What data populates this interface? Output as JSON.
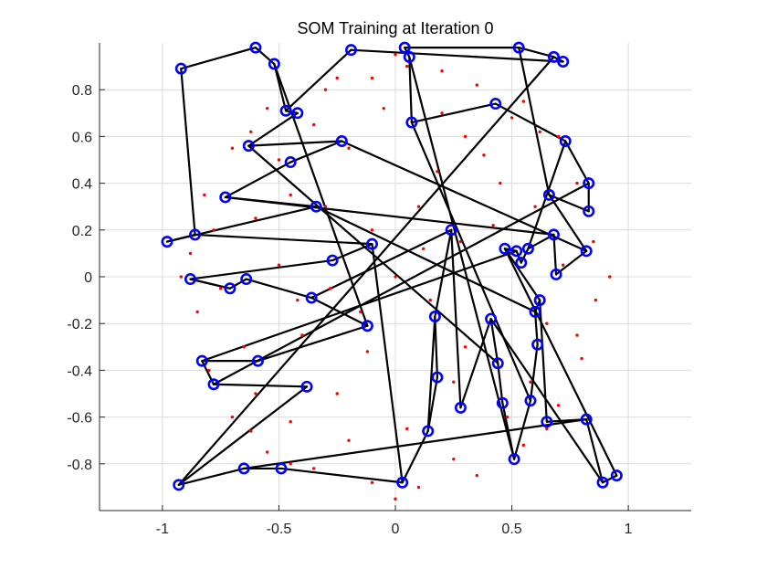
{
  "chart_data": {
    "type": "scatter",
    "title": "SOM Training at Iteration 0",
    "xlabel": "",
    "ylabel": "",
    "xlim": [
      -1.27,
      1.27
    ],
    "ylim": [
      -1.0,
      1.0
    ],
    "grid": true,
    "xticks": [
      -1,
      -0.5,
      0,
      0.5,
      1
    ],
    "yticks": [
      -0.8,
      -0.6,
      -0.4,
      -0.2,
      0,
      0.2,
      0.4,
      0.6,
      0.8
    ],
    "xtick_labels": [
      "-1",
      "-0.5",
      "0",
      "0.5",
      "1"
    ],
    "ytick_labels": [
      "-0.8",
      "-0.6",
      "-0.4",
      "-0.2",
      "0",
      "0.2",
      "0.4",
      "0.6",
      "0.8"
    ],
    "colors": {
      "data_points": "#ff0000",
      "neurons": "#0000ff",
      "connections": "#000000",
      "grid": "#dcdcdc",
      "axis": "#262626"
    },
    "series": [
      {
        "role": "data-points",
        "marker": "dot",
        "color": "#ff0000",
        "points": [
          [
            0.05,
            0.9
          ],
          [
            -0.1,
            0.85
          ],
          [
            0.2,
            0.88
          ],
          [
            0.35,
            0.82
          ],
          [
            -0.3,
            0.8
          ],
          [
            0.55,
            0.75
          ],
          [
            -0.55,
            0.72
          ],
          [
            0.7,
            0.6
          ],
          [
            -0.7,
            0.55
          ],
          [
            0.78,
            0.4
          ],
          [
            -0.82,
            0.35
          ],
          [
            0.85,
            0.15
          ],
          [
            -0.88,
            0.1
          ],
          [
            0.86,
            -0.1
          ],
          [
            -0.85,
            -0.15
          ],
          [
            0.8,
            -0.35
          ],
          [
            -0.8,
            -0.4
          ],
          [
            0.7,
            -0.55
          ],
          [
            -0.7,
            -0.6
          ],
          [
            0.55,
            -0.72
          ],
          [
            -0.55,
            -0.75
          ],
          [
            0.35,
            -0.85
          ],
          [
            -0.35,
            -0.82
          ],
          [
            0.1,
            -0.9
          ],
          [
            -0.1,
            -0.88
          ],
          [
            0.3,
            0.6
          ],
          [
            -0.2,
            0.55
          ],
          [
            0.45,
            0.4
          ],
          [
            -0.45,
            0.35
          ],
          [
            0.5,
            0.1
          ],
          [
            -0.5,
            0.05
          ],
          [
            0.4,
            -0.2
          ],
          [
            -0.4,
            -0.25
          ],
          [
            0.25,
            -0.45
          ],
          [
            -0.25,
            -0.5
          ],
          [
            0.1,
            0.3
          ],
          [
            -0.1,
            0.2
          ],
          [
            0.15,
            -0.1
          ],
          [
            -0.15,
            -0.15
          ],
          [
            0.0,
            0.0
          ],
          [
            0.6,
            0.3
          ],
          [
            -0.6,
            0.25
          ],
          [
            0.65,
            -0.2
          ],
          [
            -0.65,
            -0.3
          ],
          [
            0.2,
            0.7
          ],
          [
            -0.35,
            0.65
          ],
          [
            0.48,
            -0.6
          ],
          [
            -0.45,
            -0.62
          ],
          [
            0.28,
            0.15
          ],
          [
            -0.28,
            -0.05
          ],
          [
            0.72,
            0.05
          ],
          [
            -0.75,
            -0.05
          ],
          [
            0.05,
            -0.65
          ],
          [
            -0.05,
            0.72
          ],
          [
            0.38,
            0.52
          ],
          [
            -0.5,
            0.5
          ],
          [
            0.58,
            -0.45
          ],
          [
            -0.6,
            -0.5
          ],
          [
            0.18,
            0.45
          ],
          [
            -0.2,
            -0.7
          ],
          [
            0.62,
            0.62
          ],
          [
            -0.62,
            0.62
          ],
          [
            0.65,
            -0.65
          ],
          [
            -0.62,
            -0.66
          ],
          [
            0.0,
            0.95
          ],
          [
            0.0,
            -0.95
          ],
          [
            0.92,
            0.0
          ],
          [
            -0.92,
            0.0
          ],
          [
            0.3,
            -0.3
          ],
          [
            -0.3,
            0.3
          ],
          [
            0.12,
            0.12
          ],
          [
            -0.12,
            -0.32
          ],
          [
            0.42,
            0.22
          ],
          [
            -0.42,
            -0.1
          ],
          [
            0.25,
            -0.78
          ],
          [
            -0.25,
            0.85
          ],
          [
            0.78,
            -0.25
          ],
          [
            -0.78,
            0.2
          ],
          [
            0.5,
            0.68
          ],
          [
            -0.45,
            -0.8
          ]
        ]
      },
      {
        "role": "som-neurons",
        "marker": "circle",
        "color": "#0000ff",
        "connected": true,
        "points": [
          [
            -0.92,
            0.89
          ],
          [
            -0.6,
            0.98
          ],
          [
            -0.52,
            0.91
          ],
          [
            -0.47,
            0.71
          ],
          [
            -0.42,
            0.7
          ],
          [
            -0.63,
            0.56
          ],
          [
            -0.23,
            0.58
          ],
          [
            -0.45,
            0.49
          ],
          [
            -0.73,
            0.34
          ],
          [
            -0.34,
            0.3
          ],
          [
            -0.98,
            0.15
          ],
          [
            -0.86,
            0.18
          ],
          [
            -0.1,
            0.14
          ],
          [
            -0.27,
            0.07
          ],
          [
            -0.88,
            -0.01
          ],
          [
            -0.71,
            -0.05
          ],
          [
            -0.64,
            -0.01
          ],
          [
            -0.36,
            -0.09
          ],
          [
            -0.12,
            -0.21
          ],
          [
            -0.59,
            -0.36
          ],
          [
            -0.83,
            -0.36
          ],
          [
            -0.78,
            -0.46
          ],
          [
            -0.38,
            -0.47
          ],
          [
            -0.93,
            -0.89
          ],
          [
            -0.65,
            -0.82
          ],
          [
            -0.49,
            -0.82
          ],
          [
            0.03,
            -0.88
          ],
          [
            0.14,
            -0.66
          ],
          [
            0.18,
            -0.43
          ],
          [
            0.17,
            -0.17
          ],
          [
            0.24,
            0.2
          ],
          [
            0.28,
            -0.56
          ],
          [
            0.41,
            -0.18
          ],
          [
            0.44,
            -0.37
          ],
          [
            0.46,
            -0.54
          ],
          [
            0.51,
            -0.78
          ],
          [
            0.58,
            -0.53
          ],
          [
            0.61,
            -0.29
          ],
          [
            0.6,
            -0.15
          ],
          [
            0.62,
            -0.1
          ],
          [
            0.65,
            -0.62
          ],
          [
            0.82,
            -0.61
          ],
          [
            0.89,
            -0.88
          ],
          [
            0.95,
            -0.85
          ],
          [
            0.47,
            0.12
          ],
          [
            0.52,
            0.11
          ],
          [
            0.54,
            0.06
          ],
          [
            0.57,
            0.12
          ],
          [
            0.68,
            0.18
          ],
          [
            0.69,
            0.01
          ],
          [
            0.82,
            0.11
          ],
          [
            0.66,
            0.35
          ],
          [
            0.83,
            0.28
          ],
          [
            0.83,
            0.4
          ],
          [
            0.73,
            0.58
          ],
          [
            0.43,
            0.74
          ],
          [
            0.07,
            0.66
          ],
          [
            0.06,
            0.94
          ],
          [
            0.04,
            0.98
          ],
          [
            0.53,
            0.98
          ],
          [
            0.68,
            0.94
          ],
          [
            0.72,
            0.92
          ],
          [
            -0.19,
            0.97
          ]
        ]
      }
    ]
  }
}
